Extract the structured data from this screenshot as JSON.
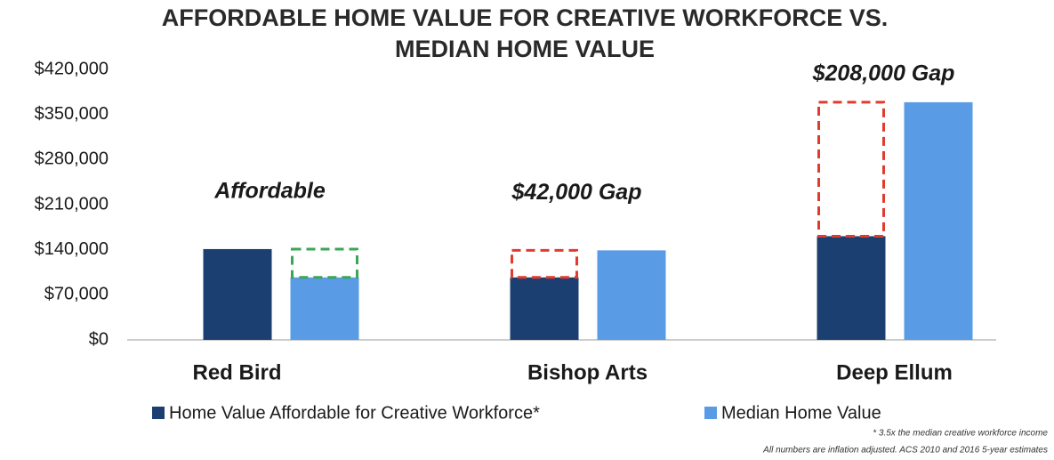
{
  "chart_data": {
    "type": "bar",
    "title": [
      "AFFORDABLE HOME VALUE FOR CREATIVE WORKFORCE VS.",
      "MEDIAN HOME VALUE"
    ],
    "categories": [
      "Red Bird",
      "Bishop Arts",
      "Deep Ellum"
    ],
    "series": [
      {
        "name": "Home Value Affordable for Creative Workforce*",
        "color": "#1c3f72",
        "values": [
          141000,
          97000,
          161000
        ]
      },
      {
        "name": "Median Home Value",
        "color": "#5a9be6",
        "values": [
          97000,
          139000,
          369000
        ]
      }
    ],
    "annotations": [
      {
        "text": "Affordable",
        "color": "#3aa655"
      },
      {
        "text": "$42,000 Gap",
        "color": "#e03b2e"
      },
      {
        "text": "$208,000 Gap",
        "color": "#e03b2e"
      }
    ],
    "ylim": [
      0,
      420000
    ],
    "yticks": [
      {
        "value": 0,
        "label": "$0"
      },
      {
        "value": 70000,
        "label": "$70,000"
      },
      {
        "value": 140000,
        "label": "$140,000"
      },
      {
        "value": 210000,
        "label": "$210,000"
      },
      {
        "value": 280000,
        "label": "$280,000"
      },
      {
        "value": 350000,
        "label": "$350,000"
      },
      {
        "value": 420000,
        "label": "$420,000"
      }
    ],
    "footnotes": [
      "* 3.5x the median creative workforce income",
      "All numbers are inflation adjusted. ACS 2010 and 2016 5-year estimates"
    ]
  }
}
